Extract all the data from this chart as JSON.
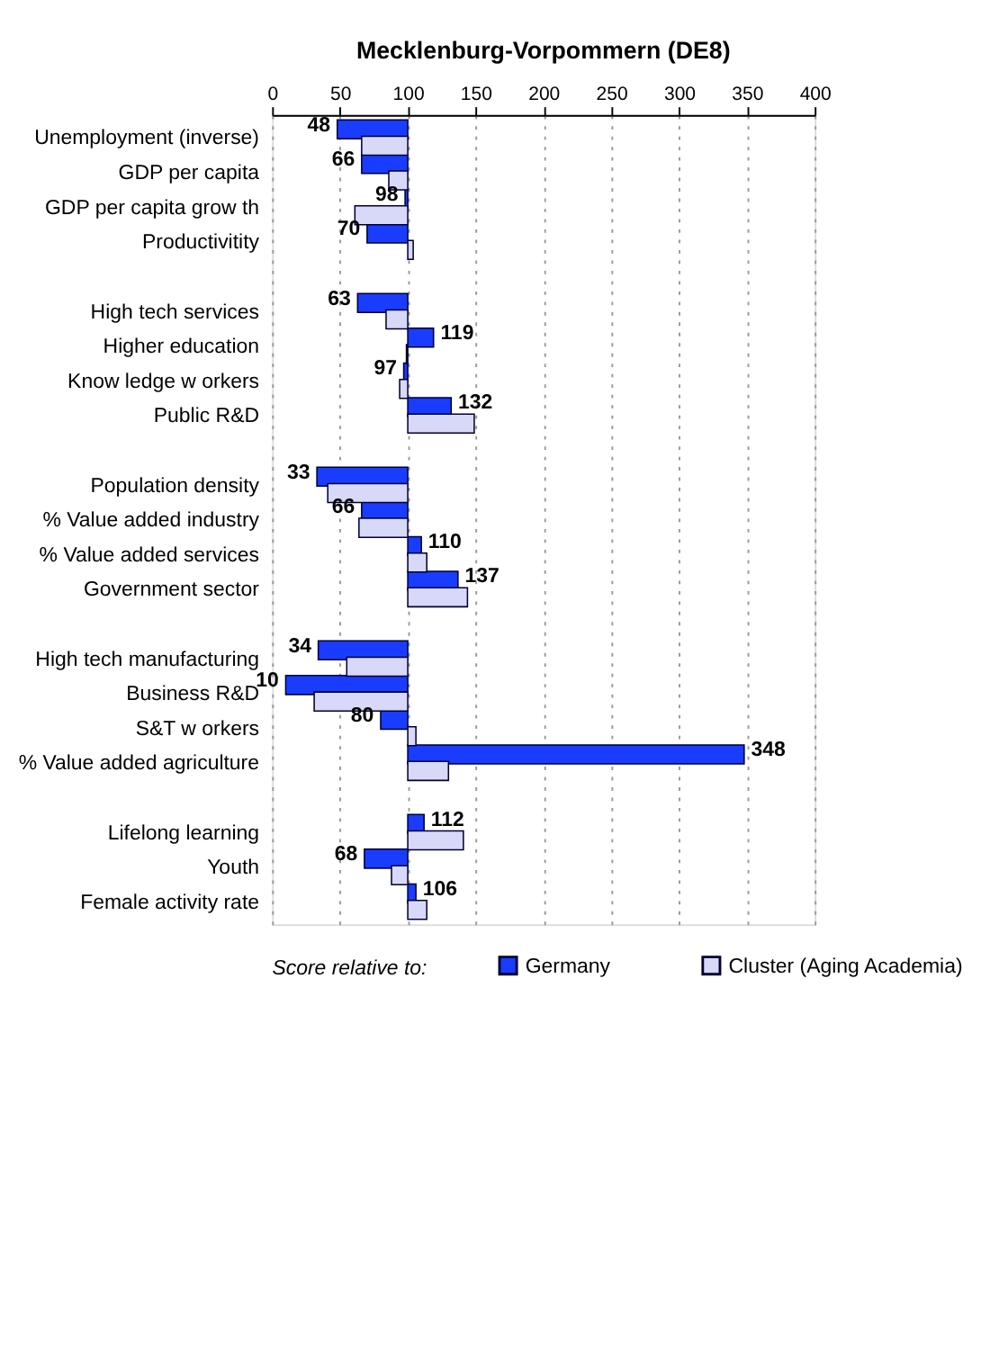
{
  "chart_data": {
    "type": "bar",
    "orientation": "horizontal",
    "title": "Mecklenburg-Vorpommern (DE8)",
    "categories": [
      "Unemployment (inverse)",
      "GDP per capita",
      "GDP per capita grow th",
      "Productivitity",
      null,
      "High tech services",
      "Higher education",
      "Know ledge w orkers",
      "Public R&D",
      null,
      "Population density",
      "% Value added industry",
      "% Value added services",
      "Government sector",
      null,
      "High tech manufacturing",
      "Business R&D",
      "S&T w orkers",
      "% Value added agriculture",
      null,
      "Lifelong learning",
      "Youth",
      "Female activity rate"
    ],
    "series": [
      {
        "name": "Germany",
        "color": "#1a3cff",
        "base": [
          100,
          100,
          100,
          100,
          null,
          100,
          100,
          100,
          100,
          null,
          100,
          100,
          100,
          100,
          null,
          100,
          100,
          100,
          100,
          null,
          100,
          100,
          100
        ],
        "values": [
          -52,
          -34,
          -2,
          -30,
          null,
          -37,
          19,
          -3,
          32,
          null,
          -67,
          -34,
          10,
          37,
          null,
          -66,
          -90,
          -20,
          248,
          null,
          12,
          -32,
          6
        ],
        "value_labels": [
          "48",
          "66",
          "98",
          "70",
          null,
          "63",
          "119",
          "97",
          "132",
          null,
          "33",
          "66",
          "110",
          "137",
          null,
          "34",
          "10",
          "80",
          "348",
          null,
          "112",
          "68",
          "106"
        ]
      },
      {
        "name": "Cluster (Aging Academia)",
        "color": "#d8d8f8",
        "base": [
          100,
          100,
          100,
          100,
          null,
          100,
          100,
          100,
          100,
          null,
          100,
          100,
          100,
          100,
          null,
          100,
          100,
          100,
          100,
          null,
          100,
          100,
          100
        ],
        "values": [
          -34,
          -14,
          -39,
          4,
          null,
          -16,
          -1,
          -6,
          49,
          null,
          -59,
          -36,
          14,
          44,
          null,
          -45,
          -69,
          6,
          30,
          null,
          41,
          -12,
          14
        ]
      }
    ],
    "xlim": [
      0,
      400
    ],
    "xticks": [
      0,
      50,
      100,
      150,
      200,
      250,
      300,
      350,
      400
    ],
    "grid": "x",
    "legend": "bottom",
    "legend_title": "Score relative to:"
  }
}
